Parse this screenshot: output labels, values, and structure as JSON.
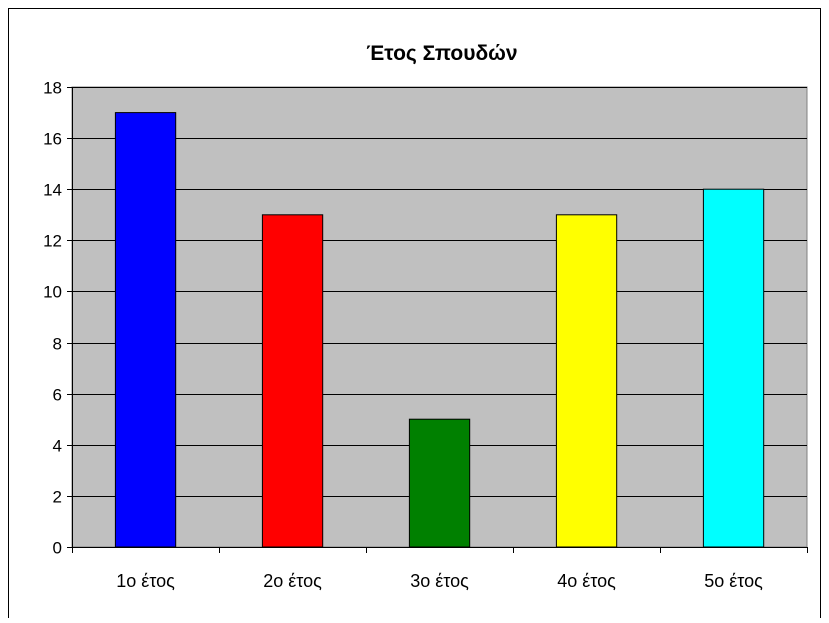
{
  "chart_data": {
    "type": "bar",
    "title": "Έτος Σπουδών",
    "categories": [
      "1ο έτος",
      "2ο έτος",
      "3ο έτος",
      "4ο έτος",
      "5ο έτος"
    ],
    "values": [
      17,
      13,
      5,
      13,
      14
    ],
    "bar_colors": [
      "#0000ff",
      "#ff0000",
      "#008000",
      "#ffff00",
      "#00ffff"
    ],
    "ylim": [
      0,
      18
    ],
    "yticks": [
      0,
      2,
      4,
      6,
      8,
      10,
      12,
      14,
      16,
      18
    ],
    "grid": true,
    "plot_background": "#c0c0c0",
    "legend": "none"
  }
}
